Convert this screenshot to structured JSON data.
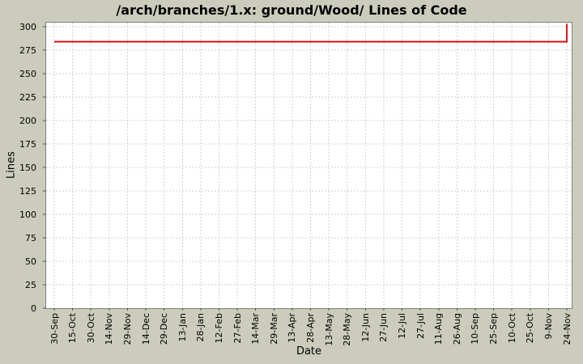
{
  "chart_data": {
    "type": "line",
    "title": "/arch/branches/1.x: ground/Wood/ Lines of Code",
    "xlabel": "Date",
    "ylabel": "Lines",
    "categories": [
      "30-Sep",
      "15-Oct",
      "30-Oct",
      "14-Nov",
      "29-Nov",
      "14-Dec",
      "29-Dec",
      "13-Jan",
      "28-Jan",
      "12-Feb",
      "27-Feb",
      "14-Mar",
      "29-Mar",
      "13-Apr",
      "28-Apr",
      "13-May",
      "28-May",
      "12-Jun",
      "27-Jun",
      "12-Jul",
      "27-Jul",
      "11-Aug",
      "26-Aug",
      "10-Sep",
      "25-Sep",
      "10-Oct",
      "25-Oct",
      "9-Nov",
      "24-Nov"
    ],
    "series": [
      {
        "name": "Lines of Code",
        "values": [
          284,
          284,
          284,
          284,
          284,
          284,
          284,
          284,
          284,
          284,
          284,
          284,
          284,
          284,
          284,
          284,
          284,
          284,
          284,
          284,
          284,
          284,
          284,
          284,
          284,
          284,
          284,
          284,
          303
        ]
      }
    ],
    "yticks": [
      0,
      25,
      50,
      75,
      100,
      125,
      150,
      175,
      200,
      225,
      250,
      275,
      300
    ],
    "ylim": [
      0,
      300
    ],
    "grid": true,
    "legend": "none",
    "line_style": "step-after"
  },
  "colors": {
    "background": "#ccccbc",
    "plot_background": "#ffffff",
    "grid": "#d2d2d2",
    "series": "#dd0000",
    "border": "#808080",
    "tick": "#555555",
    "text": "#000000"
  }
}
